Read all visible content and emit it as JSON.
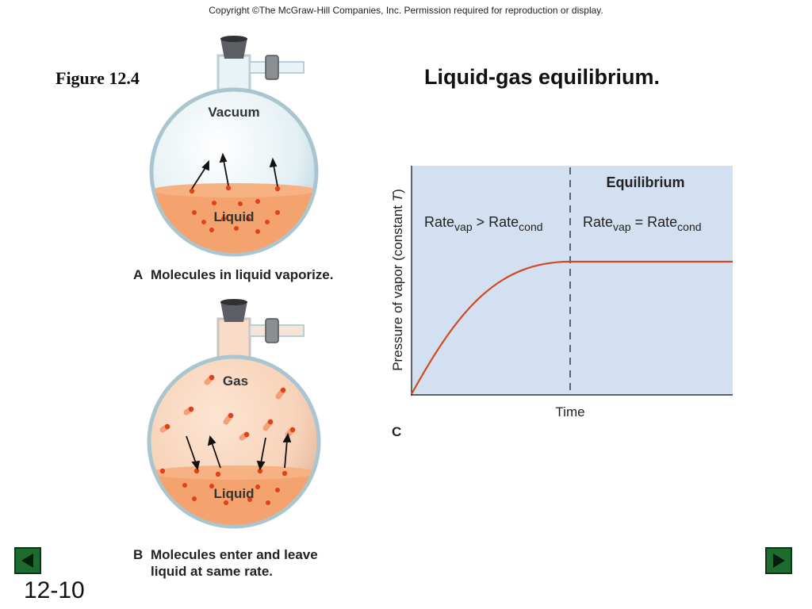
{
  "copyright": "Copyright ©The McGraw-Hill Companies, Inc.  Permission required for reproduction or display.",
  "figure_label": "Figure 12.4",
  "title": "Liquid-gas equilibrium.",
  "panel_a": {
    "letter": "A",
    "caption": "Molecules in liquid vaporize.",
    "vacuum_label": "Vacuum",
    "liquid_label": "Liquid"
  },
  "panel_b": {
    "letter": "B",
    "caption_line1": "Molecules enter and leave",
    "caption_line2": "liquid at same rate.",
    "gas_label": "Gas",
    "liquid_label": "Liquid"
  },
  "panel_c": {
    "letter": "C",
    "ylabel_prefix": "Pressure of vapor (constant ",
    "ylabel_var": "T",
    "ylabel_suffix": ")",
    "xlabel": "Time",
    "equilibrium_label": "Equilibrium",
    "rate_word": "Rate",
    "vap_sub": "vap",
    "cond_sub": "cond",
    "gt_sign": ">",
    "eq_sign": "="
  },
  "colors": {
    "graph_bg": "#d3e0f2",
    "curve": "#d24a22",
    "liquid": "#f2a070",
    "molecule": "#e0401a",
    "nav_green": "#1d6b2f"
  },
  "nav": {
    "prev_icon": "triangle-left-icon",
    "next_icon": "triangle-right-icon"
  },
  "slide_number": "12-10"
}
